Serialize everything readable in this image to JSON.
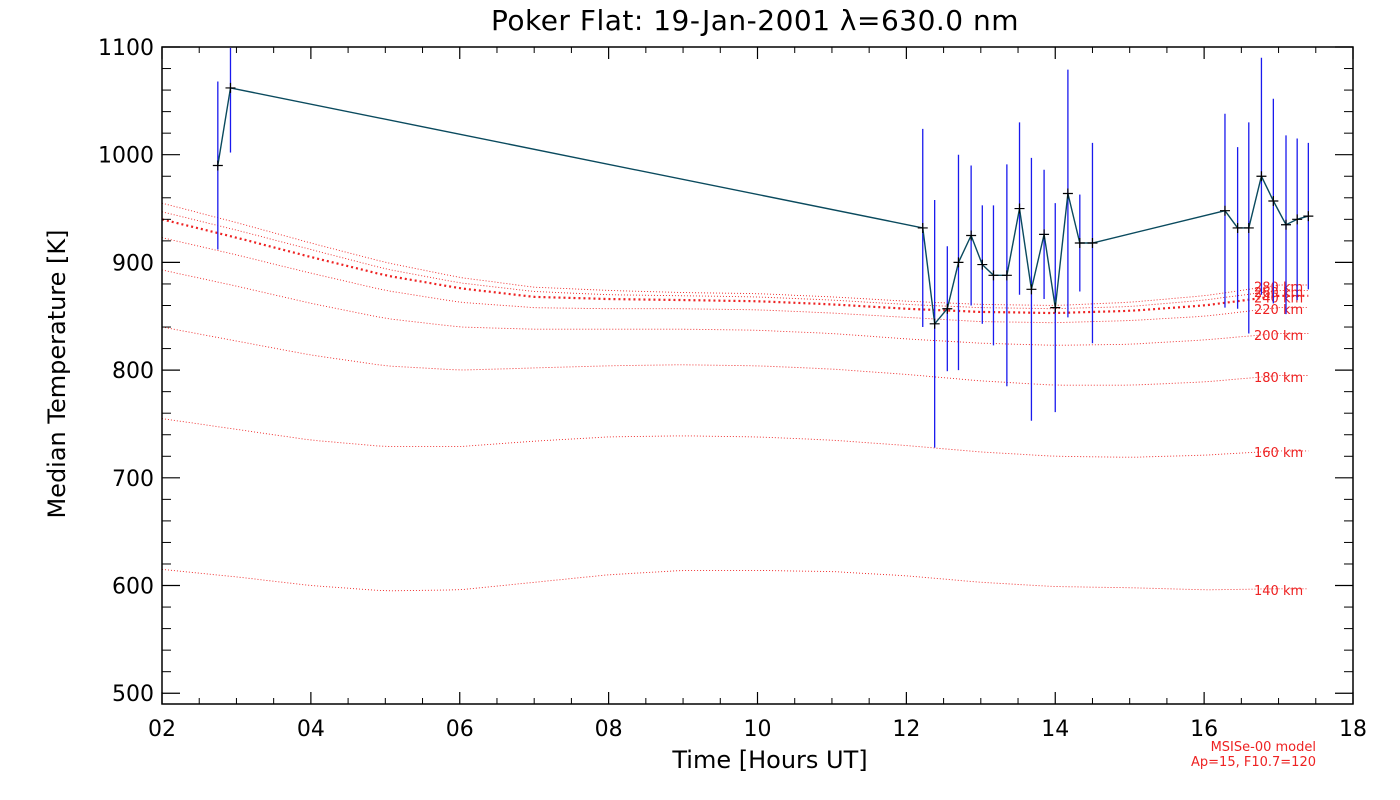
{
  "chart_data": {
    "type": "line",
    "title": "Poker Flat: 19-Jan-2001 λ=630.0 nm",
    "xlabel": "Time [Hours UT]",
    "ylabel": "Median Temperature [K]",
    "xlim": [
      2,
      18
    ],
    "ylim": [
      490,
      1100
    ],
    "x_ticks": [
      2,
      4,
      6,
      8,
      10,
      12,
      14,
      16,
      18
    ],
    "x_tick_labels": [
      "02",
      "04",
      "06",
      "08",
      "10",
      "12",
      "14",
      "16",
      "18"
    ],
    "y_ticks": [
      500,
      600,
      700,
      800,
      900,
      1000,
      1100
    ],
    "y_tick_labels": [
      "500",
      "600",
      "700",
      "800",
      "900",
      "1000",
      "1100"
    ],
    "measured": {
      "name": "Median temperature",
      "line_color": "#0a4a5e",
      "errorbar_color": "#1a1aee",
      "x": [
        2.75,
        2.92,
        12.22,
        12.38,
        12.55,
        12.7,
        12.87,
        13.02,
        13.17,
        13.35,
        13.52,
        13.68,
        13.85,
        14.0,
        14.17,
        14.33,
        14.5,
        16.28,
        16.45,
        16.6,
        16.77,
        16.93,
        17.1,
        17.25,
        17.4
      ],
      "y": [
        990,
        1062,
        932,
        843,
        857,
        900,
        925,
        898,
        888,
        888,
        950,
        875,
        926,
        858,
        964,
        918,
        918,
        948,
        932,
        932,
        980,
        957,
        935,
        940,
        943
      ],
      "err": [
        78,
        60,
        92,
        115,
        58,
        100,
        65,
        55,
        65,
        103,
        80,
        122,
        60,
        97,
        115,
        45,
        93,
        90,
        75,
        98,
        110,
        95,
        83,
        75,
        68
      ]
    },
    "model": {
      "name": "MSISe-00 model",
      "params": "Ap=15, F10.7=120",
      "color": "#ee2222",
      "x": [
        2,
        3,
        4,
        5,
        6,
        7,
        8,
        9,
        10,
        11,
        12,
        13,
        14,
        15,
        16,
        17
      ],
      "series": [
        {
          "name": "140 km",
          "values": [
            615,
            608,
            600,
            595,
            596,
            603,
            610,
            614,
            614,
            613,
            609,
            603,
            599,
            598,
            596,
            597
          ]
        },
        {
          "name": "160 km",
          "values": [
            755,
            745,
            735,
            729,
            729,
            734,
            738,
            739,
            738,
            735,
            730,
            724,
            720,
            719,
            721,
            725
          ]
        },
        {
          "name": "180 km",
          "values": [
            840,
            827,
            814,
            804,
            800,
            802,
            804,
            805,
            804,
            801,
            796,
            790,
            786,
            786,
            789,
            795
          ]
        },
        {
          "name": "200 km",
          "values": [
            893,
            878,
            862,
            848,
            840,
            838,
            838,
            838,
            837,
            834,
            829,
            825,
            823,
            824,
            828,
            834
          ]
        },
        {
          "name": "220 km",
          "values": [
            923,
            907,
            890,
            874,
            863,
            858,
            857,
            857,
            856,
            853,
            849,
            845,
            844,
            846,
            850,
            858
          ]
        },
        {
          "name": "240 km",
          "values": [
            940,
            923,
            905,
            888,
            876,
            868,
            866,
            865,
            864,
            861,
            857,
            854,
            853,
            855,
            860,
            869
          ]
        },
        {
          "name": "260 km",
          "values": [
            947,
            930,
            912,
            894,
            881,
            873,
            870,
            869,
            868,
            865,
            861,
            858,
            857,
            859,
            865,
            874
          ]
        },
        {
          "name": "280 km",
          "values": [
            955,
            937,
            918,
            900,
            886,
            877,
            874,
            872,
            871,
            868,
            864,
            861,
            860,
            863,
            869,
            879
          ]
        }
      ]
    }
  }
}
